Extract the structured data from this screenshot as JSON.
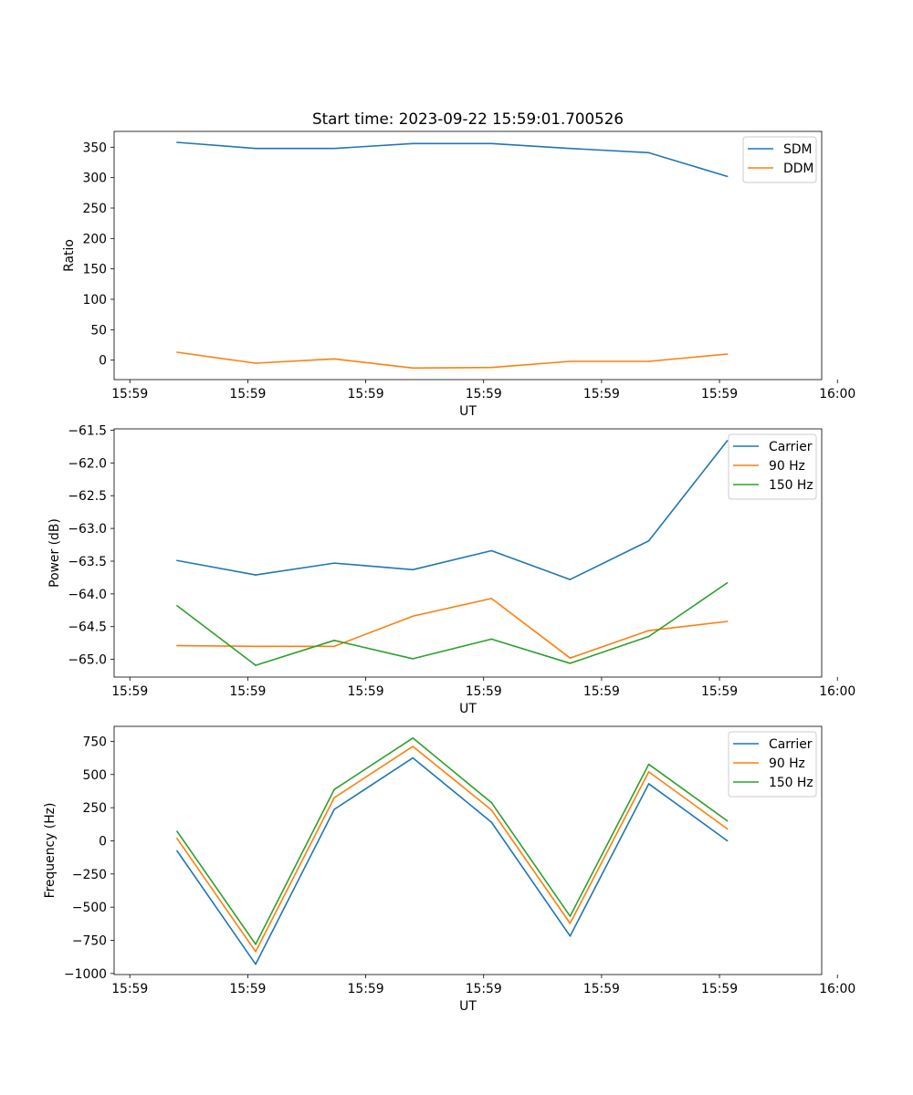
{
  "figure": {
    "title": "Start time: 2023-09-22 15:59:01.700526",
    "colors": {
      "blue": "#1f77b4",
      "orange": "#ff7f0e",
      "green": "#2ca02c"
    }
  },
  "chart_data": [
    {
      "type": "line",
      "title": "Start time: 2023-09-22 15:59:01.700526",
      "xlabel": "UT",
      "ylabel": "Ratio",
      "x": [
        1,
        2,
        3,
        4,
        5,
        6,
        7,
        8
      ],
      "xlim": [
        0.2,
        9.2
      ],
      "x_ticks": [
        0.4,
        1.9,
        3.4,
        4.9,
        6.4,
        7.9,
        9.4
      ],
      "x_tick_labels": [
        "15:59",
        "15:59",
        "15:59",
        "15:59",
        "15:59",
        "15:59",
        "16:00"
      ],
      "ylim": [
        -32,
        376
      ],
      "y_ticks": [
        0,
        50,
        100,
        150,
        200,
        250,
        300,
        350
      ],
      "y_tick_labels": [
        "0",
        "50",
        "100",
        "150",
        "200",
        "250",
        "300",
        "350"
      ],
      "legend": "top-right",
      "series": [
        {
          "name": "SDM",
          "color": "#1f77b4",
          "values": [
            358,
            348,
            348,
            356,
            356,
            348,
            341,
            302
          ]
        },
        {
          "name": "DDM",
          "color": "#ff7f0e",
          "values": [
            13,
            -5,
            2,
            -13,
            -12,
            -2,
            -2,
            10
          ]
        }
      ]
    },
    {
      "type": "line",
      "title": "",
      "xlabel": "UT",
      "ylabel": "Power (dB)",
      "x": [
        1,
        2,
        3,
        4,
        5,
        6,
        7,
        8
      ],
      "xlim": [
        0.2,
        9.2
      ],
      "x_ticks": [
        0.4,
        1.9,
        3.4,
        4.9,
        6.4,
        7.9,
        9.4
      ],
      "x_tick_labels": [
        "15:59",
        "15:59",
        "15:59",
        "15:59",
        "15:59",
        "15:59",
        "16:00"
      ],
      "ylim": [
        -65.27,
        -61.48
      ],
      "y_ticks": [
        -65.0,
        -64.5,
        -64.0,
        -63.5,
        -63.0,
        -62.5,
        -62.0,
        -61.5
      ],
      "y_tick_labels": [
        "−65.0",
        "−64.5",
        "−64.0",
        "−63.5",
        "−63.0",
        "−62.5",
        "−62.0",
        "−61.5"
      ],
      "legend": "top-right",
      "series": [
        {
          "name": "Carrier",
          "color": "#1f77b4",
          "values": [
            -63.49,
            -63.71,
            -63.53,
            -63.63,
            -63.34,
            -63.78,
            -63.19,
            -61.66
          ]
        },
        {
          "name": "90 Hz",
          "color": "#ff7f0e",
          "values": [
            -64.79,
            -64.8,
            -64.8,
            -64.34,
            -64.07,
            -64.98,
            -64.56,
            -64.42
          ]
        },
        {
          "name": "150 Hz",
          "color": "#2ca02c",
          "values": [
            -64.18,
            -65.09,
            -64.71,
            -64.99,
            -64.69,
            -65.06,
            -64.65,
            -63.83
          ]
        }
      ]
    },
    {
      "type": "line",
      "title": "",
      "xlabel": "UT",
      "ylabel": "Frequency (Hz)",
      "x": [
        1,
        2,
        3,
        4,
        5,
        6,
        7,
        8
      ],
      "xlim": [
        0.2,
        9.2
      ],
      "x_ticks": [
        0.4,
        1.9,
        3.4,
        4.9,
        6.4,
        7.9,
        9.4
      ],
      "x_tick_labels": [
        "15:59",
        "15:59",
        "15:59",
        "15:59",
        "15:59",
        "15:59",
        "16:00"
      ],
      "ylim": [
        -1008,
        863
      ],
      "y_ticks": [
        -1000,
        -750,
        -500,
        -250,
        0,
        250,
        500,
        750
      ],
      "y_tick_labels": [
        "−1000",
        "−750",
        "−500",
        "−250",
        "0",
        "250",
        "500",
        "750"
      ],
      "legend": "top-right",
      "series": [
        {
          "name": "Carrier",
          "color": "#1f77b4",
          "values": [
            -75,
            -930,
            237,
            625,
            140,
            -718,
            430,
            0
          ]
        },
        {
          "name": "90 Hz",
          "color": "#ff7f0e",
          "values": [
            18,
            -835,
            325,
            712,
            232,
            -622,
            520,
            90
          ]
        },
        {
          "name": "150 Hz",
          "color": "#2ca02c",
          "values": [
            72,
            -780,
            387,
            775,
            288,
            -568,
            577,
            150
          ]
        }
      ]
    }
  ]
}
